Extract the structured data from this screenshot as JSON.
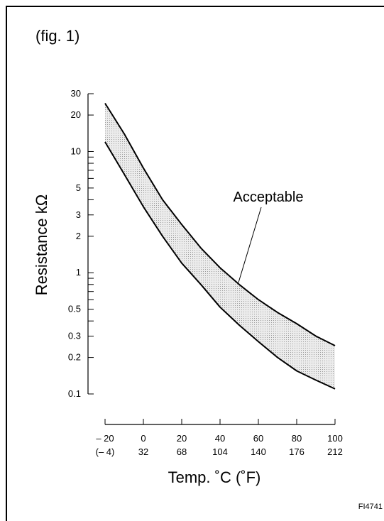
{
  "figure": {
    "label": "(fig. 1)",
    "code": "FI4741"
  },
  "chart_data": {
    "type": "area",
    "ylabel": "Resistance kΩ",
    "xlabel": "Temp. ˚C (˚F)",
    "yscale": "log",
    "ylim": [
      0.1,
      30
    ],
    "xlim": [
      -20,
      100
    ],
    "y_ticks": [
      "30",
      "20",
      "10",
      "5",
      "3",
      "2",
      "1",
      "0.5",
      "0.3",
      "0.2",
      "0.1"
    ],
    "x_ticks_c": [
      "– 20",
      "0",
      "20",
      "40",
      "60",
      "80",
      "100"
    ],
    "x_ticks_f": [
      "(– 4)",
      "32",
      "68",
      "104",
      "140",
      "176",
      "212"
    ],
    "annotation": "Acceptable",
    "band": {
      "x": [
        -20,
        -10,
        0,
        10,
        20,
        30,
        40,
        50,
        60,
        70,
        80,
        90,
        100
      ],
      "upper": [
        25,
        14,
        7.3,
        4.0,
        2.5,
        1.6,
        1.1,
        0.8,
        0.6,
        0.47,
        0.38,
        0.3,
        0.25
      ],
      "lower": [
        12,
        6.5,
        3.5,
        2.0,
        1.2,
        0.8,
        0.52,
        0.37,
        0.27,
        0.2,
        0.155,
        0.13,
        0.11
      ]
    },
    "colors": {
      "band_fill": "#d4d4d4",
      "line": "#000000"
    }
  }
}
